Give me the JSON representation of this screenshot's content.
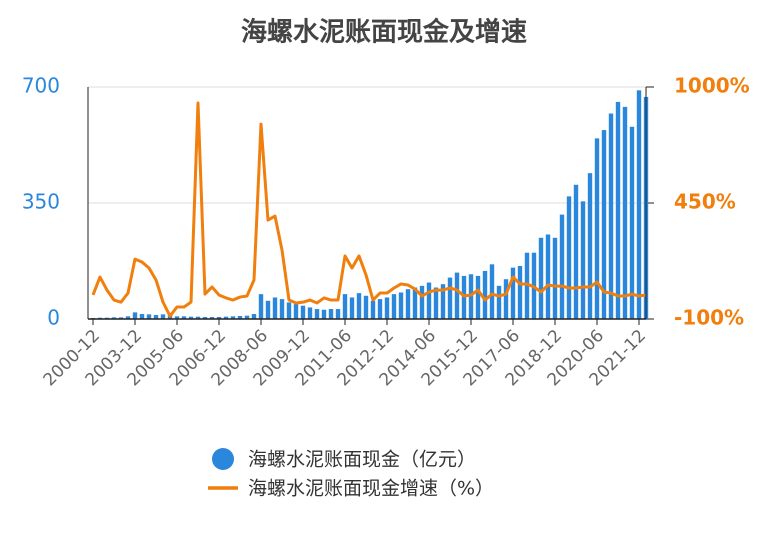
{
  "chart_data": {
    "type": "bar-line",
    "title": "海螺水泥账面现金及增速",
    "categories": [
      "2000-12",
      null,
      null,
      null,
      null,
      null,
      "2003-12",
      null,
      null,
      null,
      null,
      null,
      "2005-06",
      null,
      null,
      null,
      null,
      null,
      "2006-12",
      null,
      null,
      null,
      null,
      null,
      "2008-06",
      null,
      null,
      null,
      null,
      null,
      "2009-12",
      null,
      null,
      null,
      null,
      null,
      "2011-06",
      null,
      null,
      null,
      null,
      null,
      "2012-12",
      null,
      null,
      null,
      null,
      null,
      "2014-06",
      null,
      null,
      null,
      null,
      null,
      "2015-12",
      null,
      null,
      null,
      null,
      null,
      "2017-06",
      null,
      null,
      null,
      null,
      null,
      "2018-12",
      null,
      null,
      null,
      null,
      null,
      "2020-06",
      null,
      null,
      null,
      null,
      null,
      "2021-12",
      null
    ],
    "series": [
      {
        "name": "海螺水泥账面现金（亿元）",
        "color": "#2a87dc",
        "type": "bar",
        "values": [
          3,
          4,
          4,
          5,
          5,
          8,
          20,
          15,
          14,
          12,
          14,
          10,
          8,
          8,
          7,
          7,
          6,
          6,
          6,
          7,
          8,
          9,
          10,
          15,
          75,
          55,
          65,
          60,
          50,
          45,
          40,
          35,
          30,
          28,
          30,
          30,
          75,
          65,
          78,
          70,
          55,
          60,
          65,
          75,
          80,
          90,
          95,
          100,
          110,
          95,
          105,
          125,
          140,
          130,
          135,
          130,
          145,
          165,
          100,
          120,
          155,
          160,
          200,
          200,
          245,
          255,
          245,
          315,
          370,
          405,
          355,
          440,
          545,
          570,
          620,
          655,
          640,
          580,
          690,
          670
        ]
      },
      {
        "name": "海螺水泥账面现金增速（%）",
        "color": "#f07f0d",
        "type": "line",
        "axis": "y2",
        "values": [
          14,
          99,
          37,
          -10,
          -20,
          23,
          184,
          170,
          142,
          85,
          -20,
          -86,
          -43,
          -43,
          -20,
          924,
          18,
          52,
          14,
          0,
          -10,
          4,
          9,
          85,
          824,
          369,
          388,
          227,
          -10,
          -24,
          -20,
          -10,
          -24,
          0,
          -10,
          -10,
          199,
          142,
          199,
          109,
          -10,
          23,
          23,
          47,
          66,
          61,
          42,
          9,
          28,
          37,
          37,
          47,
          37,
          9,
          14,
          37,
          -10,
          18,
          9,
          18,
          99,
          66,
          66,
          52,
          28,
          61,
          56,
          56,
          47,
          47,
          52,
          52,
          75,
          28,
          23,
          9,
          9,
          18,
          9,
          14
        ]
      }
    ],
    "ylim": [
      0,
      700
    ],
    "yticks": [
      0,
      350,
      700
    ],
    "y2lim": [
      -100,
      1000
    ],
    "y2ticks": [
      {
        "value": -100,
        "label": "-100%"
      },
      {
        "value": 450,
        "label": "450%"
      },
      {
        "value": 1000,
        "label": "1000%"
      }
    ],
    "grid": true
  }
}
